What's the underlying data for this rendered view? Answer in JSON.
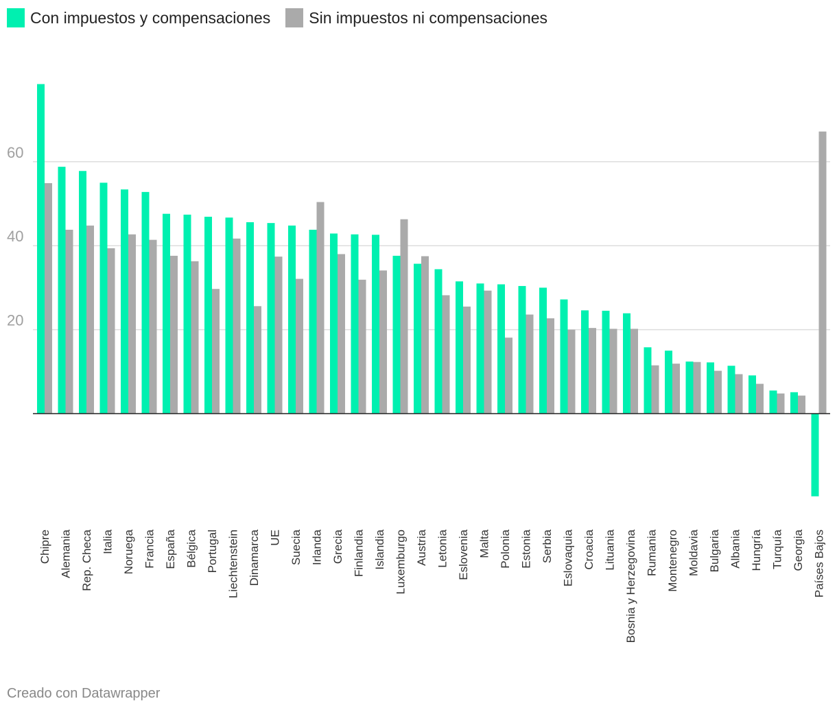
{
  "colors": {
    "with": "#00f0b0",
    "without": "#aaaaaa"
  },
  "chart_data": {
    "type": "bar",
    "title": "",
    "xlabel": "",
    "ylabel": "",
    "ylim": [
      -20,
      80
    ],
    "yticks": [
      20,
      40,
      60
    ],
    "grid": true,
    "legend": "top-left",
    "categories": [
      "Chipre",
      "Alemania",
      "Rep. Checa",
      "Italia",
      "Noruega",
      "Francia",
      "España",
      "Bélgica",
      "Portugal",
      "Liechtenstein",
      "Dinamarca",
      "UE",
      "Suecia",
      "Irlanda",
      "Grecia",
      "Finlandia",
      "Islandia",
      "Luxemburgo",
      "Austria",
      "Letonia",
      "Eslovenia",
      "Malta",
      "Polonia",
      "Estonia",
      "Serbia",
      "Eslovaquia",
      "Croacia",
      "Lituania",
      "Bosnia y Herzegovina",
      "Rumania",
      "Montenegro",
      "Moldavia",
      "Bulgaria",
      "Albania",
      "Hungría",
      "Turquía",
      "Georgia",
      "Países Bajos"
    ],
    "series": [
      {
        "name": "Con impuestos y compensaciones",
        "values": [
          78.5,
          58.8,
          57.8,
          55.0,
          53.4,
          52.8,
          47.6,
          47.4,
          46.9,
          46.7,
          45.6,
          45.4,
          44.8,
          43.8,
          42.9,
          42.7,
          42.6,
          37.6,
          35.7,
          34.4,
          31.5,
          31.0,
          30.8,
          30.4,
          30.0,
          27.2,
          24.6,
          24.5,
          23.9,
          15.8,
          15.0,
          12.4,
          12.2,
          11.4,
          9.1,
          5.5,
          5.1,
          -19.7
        ]
      },
      {
        "name": "Sin impuestos ni compensaciones",
        "values": [
          54.9,
          43.8,
          44.8,
          39.4,
          42.7,
          41.4,
          37.6,
          36.3,
          29.7,
          41.7,
          25.6,
          37.4,
          32.1,
          50.4,
          38.0,
          31.9,
          34.1,
          46.3,
          37.5,
          28.2,
          25.5,
          29.3,
          18.1,
          23.6,
          22.7,
          20.0,
          20.4,
          20.2,
          20.2,
          11.5,
          11.9,
          12.3,
          10.2,
          9.4,
          7.1,
          4.8,
          4.3,
          67.2
        ]
      }
    ]
  },
  "legend": {
    "with_label": "Con impuestos y compensaciones",
    "without_label": "Sin impuestos ni compensaciones"
  },
  "footer": {
    "credit": "Creado con Datawrapper"
  }
}
